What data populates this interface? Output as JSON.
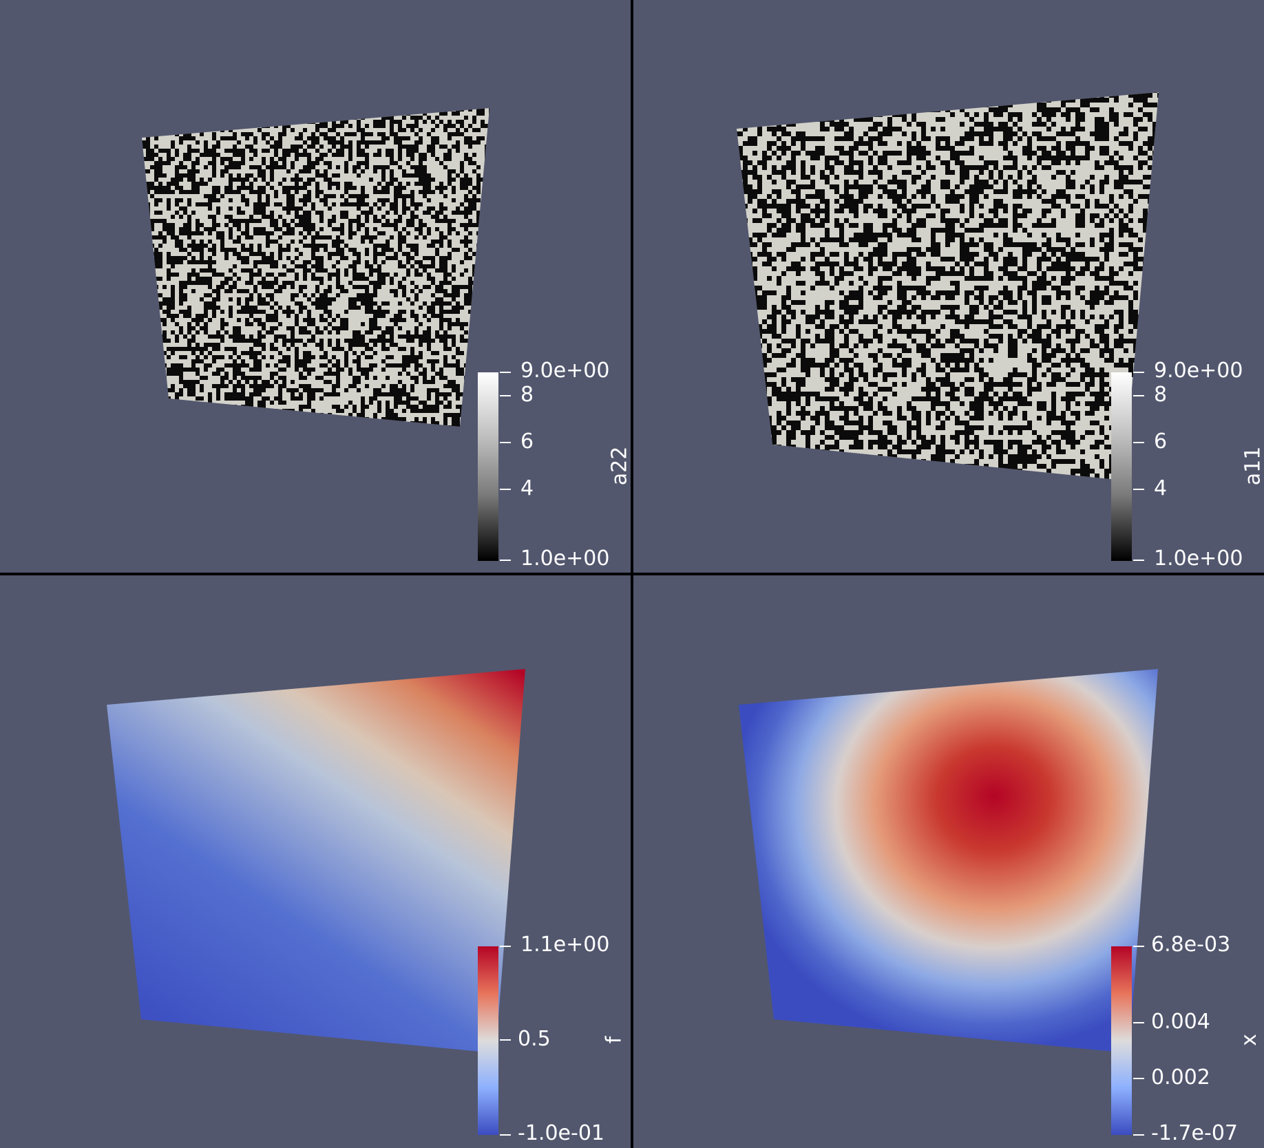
{
  "views": {
    "top_left": {
      "scalar": "a22",
      "colormap": "grayscale",
      "range_max_label": "9.0e+00",
      "range_min_label": "1.0e+00",
      "ticks": [
        "8",
        "6",
        "4"
      ],
      "field": "random-binary-speckle"
    },
    "top_right": {
      "scalar": "a11",
      "colormap": "grayscale",
      "range_max_label": "9.0e+00",
      "range_min_label": "1.0e+00",
      "ticks": [
        "8",
        "6",
        "4"
      ],
      "field": "random-binary-speckle"
    },
    "bottom_left": {
      "scalar": "f",
      "colormap": "coolwarm",
      "range_max_label": "1.1e+00",
      "range_min_label": "-1.0e-01",
      "ticks": [
        "0.5"
      ],
      "field": "diagonal-gradient"
    },
    "bottom_right": {
      "scalar": "x",
      "colormap": "coolwarm",
      "range_max_label": "6.8e-03",
      "range_min_label": "-1.7e-07",
      "ticks": [
        "0.004",
        "0.002"
      ],
      "field": "central-peak"
    }
  },
  "colors": {
    "background": "#52576e",
    "divider": "#000000",
    "speckle_light": "#d3d2ca",
    "speckle_dark": "#0b0b0b",
    "coolwarm_low": "#3b4cc0",
    "coolwarm_mid": "#dddcdc",
    "coolwarm_high": "#b40426"
  }
}
